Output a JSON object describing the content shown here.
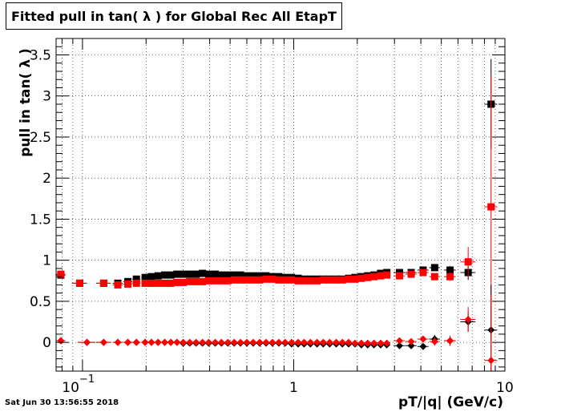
{
  "title": "Fitted pull in tan( λ ) for Global Rec All EtapT",
  "timestamp": "Sat Jun 30 13:56:55 2018",
  "colors": {
    "black": "#000000",
    "red": "#ff0000",
    "grid": "#000000"
  },
  "chart_data": {
    "type": "scatter",
    "title": "Fitted pull in tan( λ ) for Global Rec All EtapT",
    "xlabel": "pT/|q| (GeV/c)",
    "ylabel": "pull in tan( λ )",
    "xscale": "log",
    "xlim": [
      0.075,
      10
    ],
    "ylim": [
      -0.35,
      3.7
    ],
    "grid": true,
    "x_tick_labels": [
      {
        "value": 0.1,
        "base": "10",
        "exp": "−1"
      },
      {
        "value": 1,
        "label": "1"
      },
      {
        "value": 10,
        "label": "10"
      }
    ],
    "y_tick_labels": [
      {
        "value": 0,
        "label": "0"
      },
      {
        "value": 0.5,
        "label": "0.5"
      },
      {
        "value": 1,
        "label": "1"
      },
      {
        "value": 1.5,
        "label": "1.5"
      },
      {
        "value": 2,
        "label": "2"
      },
      {
        "value": 2.5,
        "label": "2.5"
      },
      {
        "value": 3,
        "label": "3"
      },
      {
        "value": 3.5,
        "label": "3.5"
      }
    ],
    "series": [
      {
        "marker": "square",
        "color": "#000000",
        "x": [
          0.079,
          0.097,
          0.126,
          0.147,
          0.164,
          0.18,
          0.198,
          0.212,
          0.228,
          0.245,
          0.262,
          0.28,
          0.3,
          0.322,
          0.345,
          0.37,
          0.396,
          0.425,
          0.455,
          0.488,
          0.523,
          0.56,
          0.6,
          0.643,
          0.69,
          0.74,
          0.793,
          0.85,
          0.911,
          0.977,
          1.05,
          1.12,
          1.2,
          1.29,
          1.38,
          1.48,
          1.59,
          1.7,
          1.82,
          1.95,
          2.09,
          2.24,
          2.4,
          2.58,
          2.76,
          3.17,
          3.6,
          4.1,
          4.65,
          5.5,
          6.7,
          8.6
        ],
        "y": [
          0.82,
          0.72,
          0.72,
          0.72,
          0.74,
          0.77,
          0.79,
          0.8,
          0.81,
          0.82,
          0.82,
          0.83,
          0.83,
          0.83,
          0.83,
          0.84,
          0.83,
          0.83,
          0.82,
          0.82,
          0.82,
          0.82,
          0.81,
          0.81,
          0.81,
          0.81,
          0.8,
          0.8,
          0.79,
          0.79,
          0.78,
          0.77,
          0.77,
          0.77,
          0.77,
          0.77,
          0.77,
          0.77,
          0.78,
          0.79,
          0.8,
          0.81,
          0.82,
          0.84,
          0.85,
          0.85,
          0.85,
          0.88,
          0.91,
          0.88,
          0.85,
          2.9
        ],
        "xerr": [
          0.004,
          0.008,
          0.01,
          0.008,
          0.008,
          0.008,
          0.008,
          0.007,
          0.008,
          0.008,
          0.008,
          0.009,
          0.01,
          0.011,
          0.011,
          0.012,
          0.013,
          0.014,
          0.015,
          0.016,
          0.017,
          0.018,
          0.019,
          0.021,
          0.022,
          0.024,
          0.025,
          0.028,
          0.03,
          0.032,
          0.035,
          0.037,
          0.04,
          0.043,
          0.046,
          0.05,
          0.053,
          0.057,
          0.06,
          0.065,
          0.07,
          0.075,
          0.08,
          0.085,
          0.09,
          0.2,
          0.22,
          0.25,
          0.27,
          0.35,
          0.55,
          0.6
        ],
        "yerr": [
          0.02,
          0.01,
          0.01,
          0.01,
          0.01,
          0.01,
          0.01,
          0.01,
          0.01,
          0.01,
          0.01,
          0.01,
          0.01,
          0.01,
          0.01,
          0.01,
          0.01,
          0.01,
          0.01,
          0.01,
          0.01,
          0.01,
          0.01,
          0.01,
          0.01,
          0.01,
          0.01,
          0.01,
          0.01,
          0.01,
          0.01,
          0.01,
          0.01,
          0.01,
          0.01,
          0.01,
          0.01,
          0.01,
          0.01,
          0.01,
          0.01,
          0.01,
          0.01,
          0.01,
          0.01,
          0.02,
          0.02,
          0.03,
          0.04,
          0.05,
          0.09,
          0.55
        ]
      },
      {
        "marker": "square",
        "color": "#ff0000",
        "x": [
          0.079,
          0.097,
          0.126,
          0.147,
          0.164,
          0.18,
          0.198,
          0.212,
          0.228,
          0.245,
          0.262,
          0.28,
          0.3,
          0.322,
          0.345,
          0.37,
          0.396,
          0.425,
          0.455,
          0.488,
          0.523,
          0.56,
          0.6,
          0.643,
          0.69,
          0.74,
          0.793,
          0.85,
          0.911,
          0.977,
          1.05,
          1.12,
          1.2,
          1.29,
          1.38,
          1.48,
          1.59,
          1.7,
          1.82,
          1.95,
          2.09,
          2.24,
          2.4,
          2.58,
          2.76,
          3.17,
          3.6,
          4.1,
          4.65,
          5.5,
          6.7,
          8.6
        ],
        "y": [
          0.83,
          0.72,
          0.72,
          0.7,
          0.71,
          0.72,
          0.72,
          0.72,
          0.72,
          0.72,
          0.72,
          0.73,
          0.73,
          0.74,
          0.74,
          0.74,
          0.75,
          0.75,
          0.75,
          0.75,
          0.76,
          0.76,
          0.76,
          0.76,
          0.76,
          0.77,
          0.77,
          0.76,
          0.76,
          0.76,
          0.75,
          0.75,
          0.75,
          0.75,
          0.76,
          0.76,
          0.76,
          0.76,
          0.77,
          0.77,
          0.78,
          0.79,
          0.8,
          0.81,
          0.82,
          0.81,
          0.83,
          0.85,
          0.8,
          0.8,
          0.98,
          1.65
        ],
        "xerr": [
          0.004,
          0.008,
          0.01,
          0.008,
          0.008,
          0.008,
          0.008,
          0.007,
          0.008,
          0.008,
          0.008,
          0.009,
          0.01,
          0.011,
          0.011,
          0.012,
          0.013,
          0.014,
          0.015,
          0.016,
          0.017,
          0.018,
          0.019,
          0.021,
          0.022,
          0.024,
          0.025,
          0.028,
          0.03,
          0.032,
          0.035,
          0.037,
          0.04,
          0.043,
          0.046,
          0.05,
          0.053,
          0.057,
          0.06,
          0.065,
          0.07,
          0.075,
          0.08,
          0.085,
          0.09,
          0.2,
          0.22,
          0.25,
          0.27,
          0.35,
          0.55,
          0.6
        ],
        "yerr": [
          0.02,
          0.01,
          0.01,
          0.01,
          0.01,
          0.01,
          0.01,
          0.01,
          0.01,
          0.01,
          0.01,
          0.01,
          0.01,
          0.01,
          0.01,
          0.01,
          0.01,
          0.01,
          0.01,
          0.01,
          0.01,
          0.01,
          0.01,
          0.01,
          0.01,
          0.01,
          0.01,
          0.01,
          0.01,
          0.01,
          0.01,
          0.01,
          0.01,
          0.01,
          0.01,
          0.01,
          0.01,
          0.01,
          0.01,
          0.01,
          0.01,
          0.01,
          0.01,
          0.01,
          0.01,
          0.02,
          0.02,
          0.03,
          0.04,
          0.05,
          0.18,
          1.6
        ]
      },
      {
        "marker": "diamond",
        "color": "#000000",
        "x": [
          0.079,
          0.105,
          0.126,
          0.147,
          0.164,
          0.18,
          0.198,
          0.212,
          0.228,
          0.245,
          0.262,
          0.28,
          0.3,
          0.322,
          0.345,
          0.37,
          0.396,
          0.425,
          0.455,
          0.488,
          0.523,
          0.56,
          0.6,
          0.643,
          0.69,
          0.74,
          0.793,
          0.85,
          0.911,
          0.977,
          1.05,
          1.12,
          1.2,
          1.29,
          1.38,
          1.48,
          1.59,
          1.7,
          1.82,
          1.95,
          2.09,
          2.24,
          2.4,
          2.58,
          2.76,
          3.17,
          3.6,
          4.1,
          4.65,
          5.5,
          6.7,
          8.6
        ],
        "y": [
          0.02,
          0.0,
          0.0,
          0.0,
          0.0,
          0.0,
          0.0,
          0.0,
          0.0,
          0.0,
          0.0,
          0.0,
          -0.01,
          -0.01,
          -0.01,
          -0.01,
          -0.01,
          -0.01,
          -0.01,
          -0.01,
          -0.01,
          -0.01,
          -0.01,
          -0.01,
          -0.01,
          -0.01,
          -0.01,
          -0.01,
          -0.01,
          -0.02,
          -0.02,
          -0.02,
          -0.02,
          -0.02,
          -0.02,
          -0.02,
          -0.02,
          -0.02,
          -0.02,
          -0.02,
          -0.03,
          -0.03,
          -0.03,
          -0.03,
          -0.03,
          -0.04,
          -0.04,
          -0.05,
          0.04,
          0.02,
          0.25,
          0.15
        ],
        "xerr": [
          0.004,
          0.01,
          0.01,
          0.008,
          0.008,
          0.008,
          0.008,
          0.007,
          0.008,
          0.008,
          0.008,
          0.009,
          0.01,
          0.011,
          0.011,
          0.012,
          0.013,
          0.014,
          0.015,
          0.016,
          0.017,
          0.018,
          0.019,
          0.021,
          0.022,
          0.024,
          0.025,
          0.028,
          0.03,
          0.032,
          0.035,
          0.037,
          0.04,
          0.043,
          0.046,
          0.05,
          0.053,
          0.057,
          0.06,
          0.065,
          0.07,
          0.075,
          0.08,
          0.085,
          0.09,
          0.2,
          0.22,
          0.25,
          0.27,
          0.35,
          0.55,
          0.6
        ],
        "yerr": [
          0.02,
          0.01,
          0.01,
          0.01,
          0.01,
          0.01,
          0.01,
          0.01,
          0.01,
          0.01,
          0.01,
          0.01,
          0.01,
          0.01,
          0.01,
          0.01,
          0.01,
          0.01,
          0.01,
          0.01,
          0.01,
          0.01,
          0.01,
          0.01,
          0.01,
          0.01,
          0.01,
          0.01,
          0.01,
          0.01,
          0.01,
          0.01,
          0.01,
          0.01,
          0.01,
          0.01,
          0.01,
          0.01,
          0.01,
          0.01,
          0.01,
          0.01,
          0.01,
          0.01,
          0.01,
          0.02,
          0.02,
          0.03,
          0.05,
          0.06,
          0.12,
          0.55
        ]
      },
      {
        "marker": "diamond",
        "color": "#ff0000",
        "x": [
          0.079,
          0.105,
          0.126,
          0.147,
          0.164,
          0.18,
          0.198,
          0.212,
          0.228,
          0.245,
          0.262,
          0.28,
          0.3,
          0.322,
          0.345,
          0.37,
          0.396,
          0.425,
          0.455,
          0.488,
          0.523,
          0.56,
          0.6,
          0.643,
          0.69,
          0.74,
          0.793,
          0.85,
          0.911,
          0.977,
          1.05,
          1.12,
          1.2,
          1.29,
          1.38,
          1.48,
          1.59,
          1.7,
          1.82,
          1.95,
          2.09,
          2.24,
          2.4,
          2.58,
          2.76,
          3.17,
          3.6,
          4.1,
          4.65,
          5.5,
          6.7,
          8.6
        ],
        "y": [
          0.02,
          0.0,
          0.0,
          0.0,
          0.0,
          0.0,
          0.0,
          0.0,
          0.0,
          0.0,
          0.0,
          0.0,
          0.0,
          0.0,
          0.0,
          0.0,
          0.0,
          0.0,
          0.0,
          0.0,
          0.0,
          0.0,
          0.0,
          0.0,
          0.0,
          0.0,
          0.0,
          0.0,
          0.0,
          0.0,
          0.0,
          0.0,
          0.0,
          0.0,
          0.0,
          0.0,
          0.0,
          0.0,
          0.0,
          -0.01,
          -0.01,
          -0.01,
          -0.01,
          -0.01,
          -0.01,
          0.02,
          0.01,
          0.04,
          0.01,
          0.02,
          0.28,
          -0.22
        ],
        "xerr": [
          0.004,
          0.01,
          0.01,
          0.008,
          0.008,
          0.008,
          0.008,
          0.007,
          0.008,
          0.008,
          0.008,
          0.009,
          0.01,
          0.011,
          0.011,
          0.012,
          0.013,
          0.014,
          0.015,
          0.016,
          0.017,
          0.018,
          0.019,
          0.021,
          0.022,
          0.024,
          0.025,
          0.028,
          0.03,
          0.032,
          0.035,
          0.037,
          0.04,
          0.043,
          0.046,
          0.05,
          0.053,
          0.057,
          0.06,
          0.065,
          0.07,
          0.075,
          0.08,
          0.085,
          0.09,
          0.2,
          0.22,
          0.25,
          0.27,
          0.35,
          0.55,
          0.6
        ],
        "yerr": [
          0.02,
          0.01,
          0.01,
          0.01,
          0.01,
          0.01,
          0.01,
          0.01,
          0.01,
          0.01,
          0.01,
          0.01,
          0.01,
          0.01,
          0.01,
          0.01,
          0.01,
          0.01,
          0.01,
          0.01,
          0.01,
          0.01,
          0.01,
          0.01,
          0.01,
          0.01,
          0.01,
          0.01,
          0.01,
          0.01,
          0.01,
          0.01,
          0.01,
          0.01,
          0.01,
          0.01,
          0.01,
          0.01,
          0.01,
          0.01,
          0.01,
          0.01,
          0.01,
          0.01,
          0.01,
          0.02,
          0.02,
          0.03,
          0.05,
          0.06,
          0.15,
          0.8
        ]
      }
    ]
  }
}
